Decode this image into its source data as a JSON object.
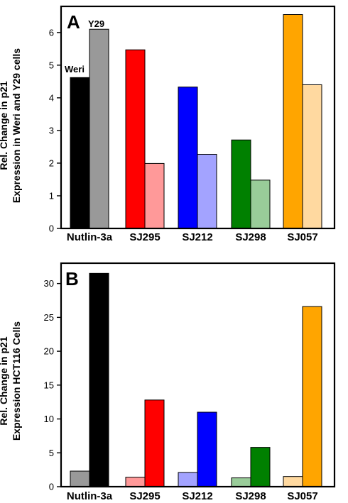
{
  "chart_data": [
    {
      "type": "bar",
      "panel_label": "A",
      "categories": [
        "Nutlin-3a",
        "SJ295",
        "SJ212",
        "SJ298",
        "SJ057"
      ],
      "ylabel_line1": "Rel. Change in p21",
      "ylabel_line2": "Expression in Weri and Y29 cells",
      "ylim": [
        0,
        6.8
      ],
      "yticks": [
        "0",
        "1",
        "2",
        "3",
        "4",
        "5",
        "6"
      ],
      "annotations": [
        "Weri",
        "Y29"
      ],
      "series": [
        {
          "values": [
            4.62,
            5.47,
            4.33,
            2.71,
            6.55
          ],
          "colors": [
            "#000000",
            "#ff0000",
            "#0000ff",
            "#008000",
            "#ffa500"
          ]
        },
        {
          "values": [
            6.1,
            1.99,
            2.27,
            1.48,
            4.4
          ],
          "colors": [
            "#999999",
            "#ff9999",
            "#a3a3ff",
            "#99cc99",
            "#ffd9a0"
          ]
        }
      ]
    },
    {
      "type": "bar",
      "panel_label": "B",
      "categories": [
        "Nutlin-3a",
        "SJ295",
        "SJ212",
        "SJ298",
        "SJ057"
      ],
      "ylabel_line1": "Rel. Change in p21",
      "ylabel_line2": "Expression  HCT116 Cells",
      "ylim": [
        0,
        33
      ],
      "yticks": [
        "0",
        "5",
        "10",
        "15",
        "20",
        "25",
        "30"
      ],
      "series": [
        {
          "values": [
            2.3,
            1.4,
            2.1,
            1.3,
            1.5
          ],
          "colors": [
            "#999999",
            "#ff9999",
            "#a3a3ff",
            "#99cc99",
            "#ffd9a0"
          ]
        },
        {
          "values": [
            31.5,
            12.8,
            11.0,
            5.8,
            26.6
          ],
          "colors": [
            "#000000",
            "#ff0000",
            "#0000ff",
            "#008000",
            "#ffa500"
          ]
        }
      ]
    }
  ]
}
